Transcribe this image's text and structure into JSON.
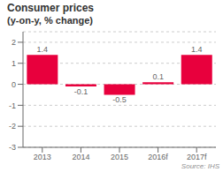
{
  "chart_data": {
    "type": "bar",
    "title": "Consumer prices",
    "subtitle": "(y-on-y, % change)",
    "annotations": [
      "Source: IHS"
    ],
    "categories": [
      "2013",
      "2014",
      "2015",
      "2016f",
      "2017f"
    ],
    "values": [
      1.4,
      -0.1,
      -0.5,
      0.1,
      1.4
    ],
    "color": "#e8003d",
    "ylim": [
      -3,
      2.5
    ],
    "yticks": [
      2,
      1,
      0,
      -1,
      -2,
      -3
    ],
    "grid": true,
    "data_labels": true
  }
}
